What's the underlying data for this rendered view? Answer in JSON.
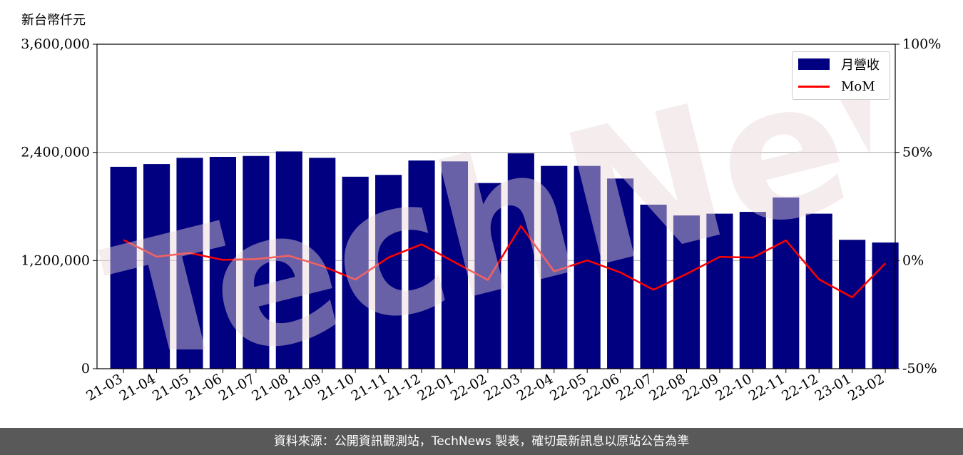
{
  "y_unit_label": "新台幣仟元",
  "footer_text": "資料來源：公開資訊觀測站，TechNews 製表，確切最新訊息以原站公告為準",
  "watermark_text": "TechNews",
  "colors": {
    "bar": "#000080",
    "line": "#ff0000",
    "footer_bg": "#595959",
    "grid": "#b0b0b0"
  },
  "chart_data": {
    "type": "bar",
    "title": "",
    "xlabel": "",
    "ylabel": "",
    "categories": [
      "21-03",
      "21-04",
      "21-05",
      "21-06",
      "21-07",
      "21-08",
      "21-09",
      "21-10",
      "21-11",
      "21-12",
      "22-01",
      "22-02",
      "22-03",
      "22-04",
      "22-05",
      "22-06",
      "22-07",
      "22-08",
      "22-09",
      "22-10",
      "22-11",
      "22-12",
      "23-01",
      "23-02"
    ],
    "series": [
      {
        "name": "月營收",
        "type": "bar",
        "axis": "left",
        "values": [
          2240000,
          2270000,
          2340000,
          2350000,
          2360000,
          2410000,
          2340000,
          2130000,
          2150000,
          2310000,
          2300000,
          2060000,
          2390000,
          2250000,
          2250000,
          2110000,
          1820000,
          1700000,
          1720000,
          1740000,
          1900000,
          1720000,
          1430000,
          1400000
        ]
      },
      {
        "name": "MoM",
        "type": "line",
        "axis": "right",
        "values": [
          9.5,
          1.8,
          3.5,
          0.3,
          0.7,
          2.2,
          -2.5,
          -8.8,
          1.4,
          7.5,
          -0.8,
          -9.0,
          16.0,
          -5.0,
          0.1,
          -5.5,
          -13.5,
          -6.2,
          1.7,
          1.4,
          9.3,
          -8.7,
          -17.0,
          -1.3
        ]
      }
    ],
    "y_left": {
      "min": 0,
      "max": 3600000,
      "ticks": [
        0,
        1200000,
        2400000,
        3600000
      ],
      "tick_labels": [
        "0",
        "1,200,000",
        "2,400,000",
        "3,600,000"
      ]
    },
    "y_right": {
      "min": -50,
      "max": 100,
      "ticks": [
        -50,
        0,
        50,
        100
      ],
      "tick_labels": [
        "-50%",
        "0%",
        "50%",
        "100%"
      ]
    },
    "grid": "horizontal",
    "legend_position": "top-right"
  }
}
